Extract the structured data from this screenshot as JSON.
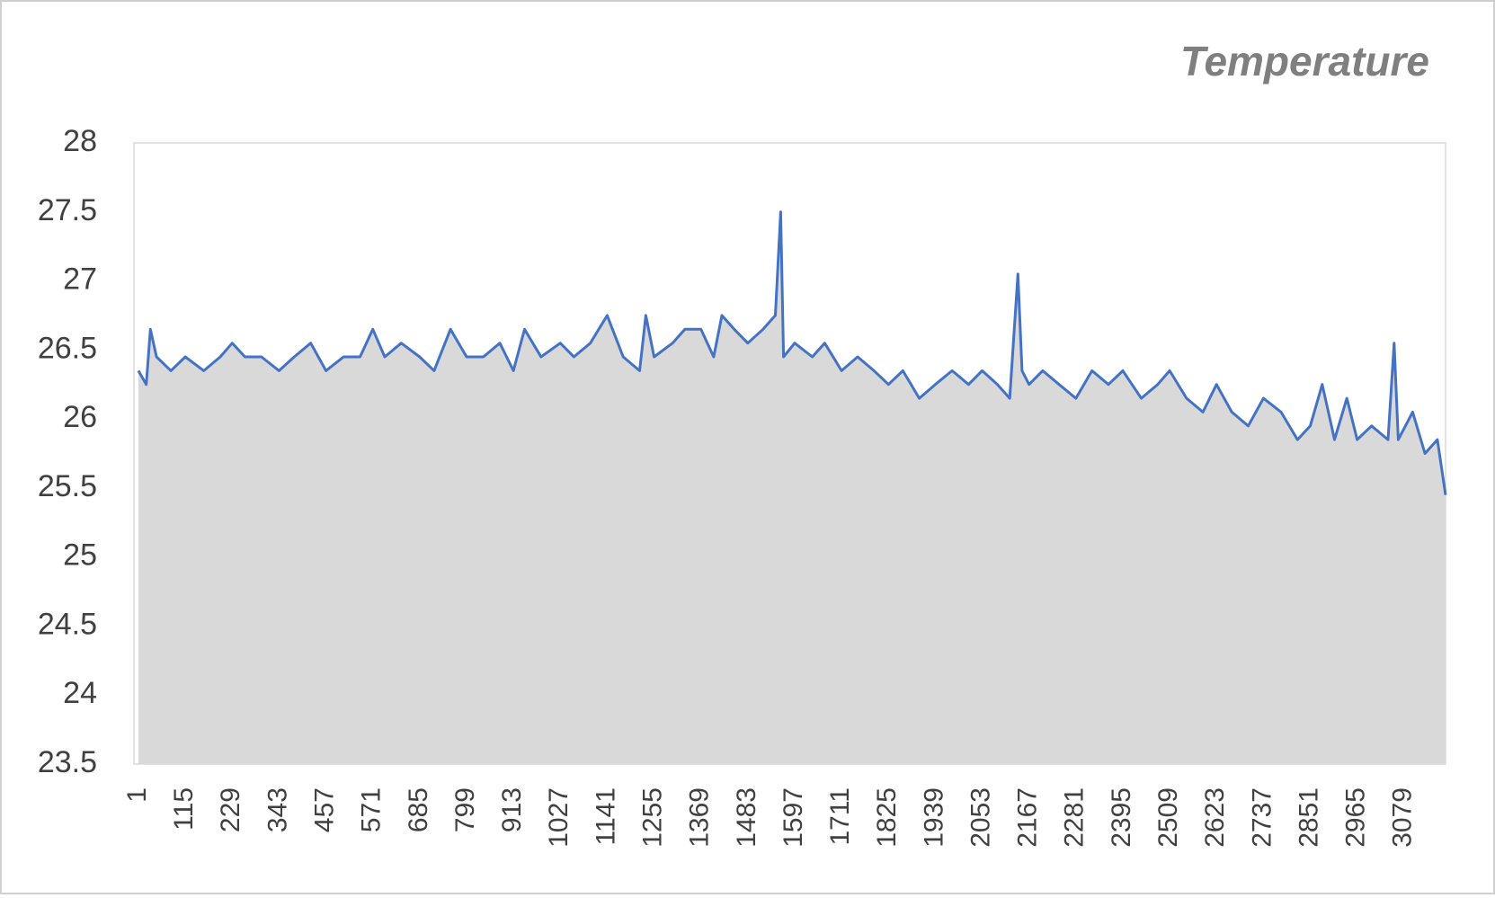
{
  "chart_data": {
    "type": "area",
    "title": "Temperature",
    "x": [
      1,
      20,
      30,
      45,
      80,
      115,
      160,
      200,
      229,
      260,
      300,
      343,
      380,
      420,
      457,
      500,
      540,
      571,
      600,
      640,
      685,
      720,
      760,
      799,
      840,
      880,
      913,
      940,
      980,
      1027,
      1060,
      1100,
      1141,
      1180,
      1220,
      1235,
      1255,
      1300,
      1330,
      1369,
      1400,
      1420,
      1450,
      1483,
      1520,
      1550,
      1563,
      1570,
      1597,
      1640,
      1670,
      1711,
      1750,
      1790,
      1825,
      1860,
      1900,
      1939,
      1980,
      2020,
      2053,
      2090,
      2120,
      2140,
      2150,
      2167,
      2200,
      2240,
      2281,
      2320,
      2360,
      2395,
      2440,
      2480,
      2509,
      2550,
      2590,
      2623,
      2660,
      2700,
      2737,
      2780,
      2820,
      2851,
      2880,
      2910,
      2940,
      2965,
      3000,
      3040,
      3055,
      3065,
      3100,
      3130,
      3160,
      3180
    ],
    "series": [
      {
        "color": "#4472c4",
        "fill": "#d9d9d9",
        "values": [
          26.35,
          26.25,
          26.65,
          26.45,
          26.35,
          26.45,
          26.35,
          26.45,
          26.55,
          26.45,
          26.45,
          26.35,
          26.45,
          26.55,
          26.35,
          26.45,
          26.45,
          26.65,
          26.45,
          26.55,
          26.45,
          26.35,
          26.65,
          26.45,
          26.45,
          26.55,
          26.35,
          26.65,
          26.45,
          26.55,
          26.45,
          26.55,
          26.75,
          26.45,
          26.35,
          26.75,
          26.45,
          26.55,
          26.65,
          26.65,
          26.45,
          26.75,
          26.65,
          26.55,
          26.65,
          26.75,
          27.5,
          26.45,
          26.55,
          26.45,
          26.55,
          26.35,
          26.45,
          26.35,
          26.25,
          26.35,
          26.15,
          26.25,
          26.35,
          26.25,
          26.35,
          26.25,
          26.15,
          27.05,
          26.35,
          26.25,
          26.35,
          26.25,
          26.15,
          26.35,
          26.25,
          26.35,
          26.15,
          26.25,
          26.35,
          26.15,
          26.05,
          26.25,
          26.05,
          25.95,
          26.15,
          26.05,
          25.85,
          25.95,
          26.25,
          25.85,
          26.15,
          25.85,
          25.95,
          25.85,
          26.55,
          25.85,
          26.05,
          25.75,
          25.85,
          25.45
        ]
      }
    ],
    "xlim": [
      1,
      3180
    ],
    "xticks": [
      1,
      115,
      229,
      343,
      457,
      571,
      685,
      799,
      913,
      1027,
      1141,
      1255,
      1369,
      1483,
      1597,
      1711,
      1825,
      1939,
      2053,
      2167,
      2281,
      2395,
      2509,
      2623,
      2737,
      2851,
      2965,
      3079
    ],
    "ylim": [
      23.5,
      28
    ],
    "yticks": [
      23.5,
      24,
      24.5,
      25,
      25.5,
      26,
      26.5,
      27,
      27.5,
      28
    ]
  }
}
